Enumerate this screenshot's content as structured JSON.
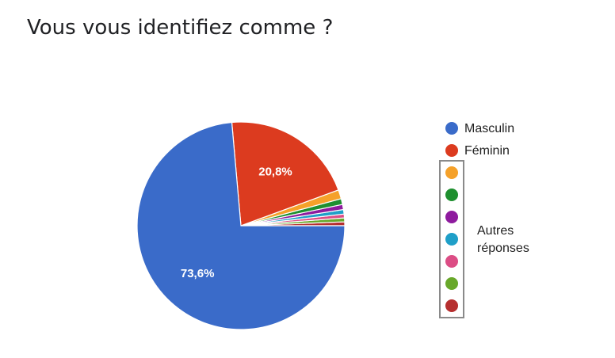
{
  "title": "Vous vous identifiez comme ?",
  "chart_data": {
    "type": "pie",
    "title": "Vous vous identifiez comme ?",
    "slices": [
      {
        "name": "Masculin",
        "value": 73.6,
        "label": "73,6%",
        "color": "#3a6bc9",
        "legend": true
      },
      {
        "name": "Féminin",
        "value": 20.8,
        "label": "20,8%",
        "color": "#dc3b1f",
        "legend": true
      },
      {
        "name": "",
        "value": 1.4,
        "label": "",
        "color": "#f5a12a",
        "legend": false
      },
      {
        "name": "",
        "value": 0.9,
        "label": "",
        "color": "#1e8f2f",
        "legend": false
      },
      {
        "name": "",
        "value": 0.8,
        "label": "",
        "color": "#8e1b9e",
        "legend": false
      },
      {
        "name": "",
        "value": 0.7,
        "label": "",
        "color": "#1f9fc8",
        "legend": false
      },
      {
        "name": "",
        "value": 0.6,
        "label": "",
        "color": "#dc4d85",
        "legend": false
      },
      {
        "name": "",
        "value": 0.6,
        "label": "",
        "color": "#68a82a",
        "legend": false
      },
      {
        "name": "",
        "value": 0.6,
        "label": "",
        "color": "#b62f2f",
        "legend": false
      }
    ],
    "other_group_label": "Autres réponses",
    "legend_position": "right"
  }
}
